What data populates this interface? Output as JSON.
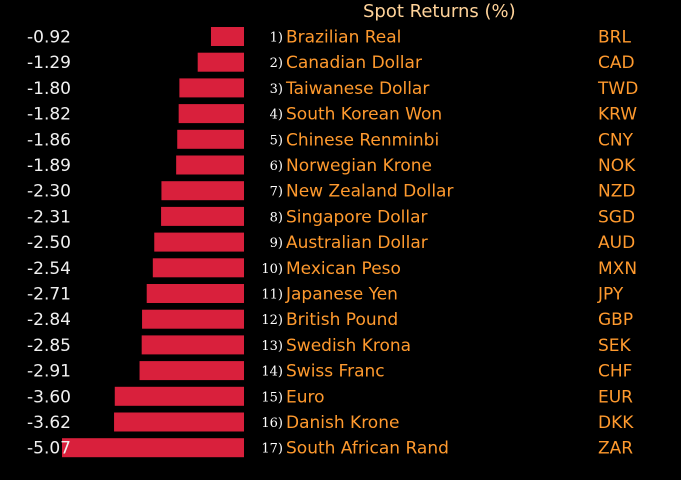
{
  "chart_data": {
    "type": "bar",
    "orientation": "horizontal",
    "title": "Spot Returns (%)",
    "colors": {
      "bar": "#d9203c",
      "values": "#f0f0f0",
      "labels": "#ff9a2e",
      "title": "#ffd39a",
      "background": "#000000"
    },
    "rows": [
      {
        "rank": "1)",
        "name": "Brazilian Real",
        "code": "BRL",
        "value": -0.92,
        "label": "-0.92"
      },
      {
        "rank": "2)",
        "name": "Canadian Dollar",
        "code": "CAD",
        "value": -1.29,
        "label": "-1.29"
      },
      {
        "rank": "3)",
        "name": "Taiwanese Dollar",
        "code": "TWD",
        "value": -1.8,
        "label": "-1.80"
      },
      {
        "rank": "4)",
        "name": "South Korean Won",
        "code": "KRW",
        "value": -1.82,
        "label": "-1.82"
      },
      {
        "rank": "5)",
        "name": "Chinese Renminbi",
        "code": "CNY",
        "value": -1.86,
        "label": "-1.86"
      },
      {
        "rank": "6)",
        "name": "Norwegian Krone",
        "code": "NOK",
        "value": -1.89,
        "label": "-1.89"
      },
      {
        "rank": "7)",
        "name": "New Zealand Dollar",
        "code": "NZD",
        "value": -2.3,
        "label": "-2.30"
      },
      {
        "rank": "8)",
        "name": "Singapore Dollar",
        "code": "SGD",
        "value": -2.31,
        "label": "-2.31"
      },
      {
        "rank": "9)",
        "name": "Australian Dollar",
        "code": "AUD",
        "value": -2.5,
        "label": "-2.50"
      },
      {
        "rank": "10)",
        "name": "Mexican Peso",
        "code": "MXN",
        "value": -2.54,
        "label": "-2.54"
      },
      {
        "rank": "11)",
        "name": "Japanese Yen",
        "code": "JPY",
        "value": -2.71,
        "label": "-2.71"
      },
      {
        "rank": "12)",
        "name": "British Pound",
        "code": "GBP",
        "value": -2.84,
        "label": "-2.84"
      },
      {
        "rank": "13)",
        "name": "Swedish Krona",
        "code": "SEK",
        "value": -2.85,
        "label": "-2.85"
      },
      {
        "rank": "14)",
        "name": "Swiss Franc",
        "code": "CHF",
        "value": -2.91,
        "label": "-2.91"
      },
      {
        "rank": "15)",
        "name": "Euro",
        "code": "EUR",
        "value": -3.6,
        "label": "-3.60"
      },
      {
        "rank": "16)",
        "name": "Danish Krone",
        "code": "DKK",
        "value": -3.62,
        "label": "-3.62"
      },
      {
        "rank": "17)",
        "name": "South African Rand",
        "code": "ZAR",
        "value": -5.07,
        "label": "-5.07"
      }
    ],
    "xlim": [
      -5.07,
      0
    ],
    "grid": false,
    "legend": "none"
  }
}
